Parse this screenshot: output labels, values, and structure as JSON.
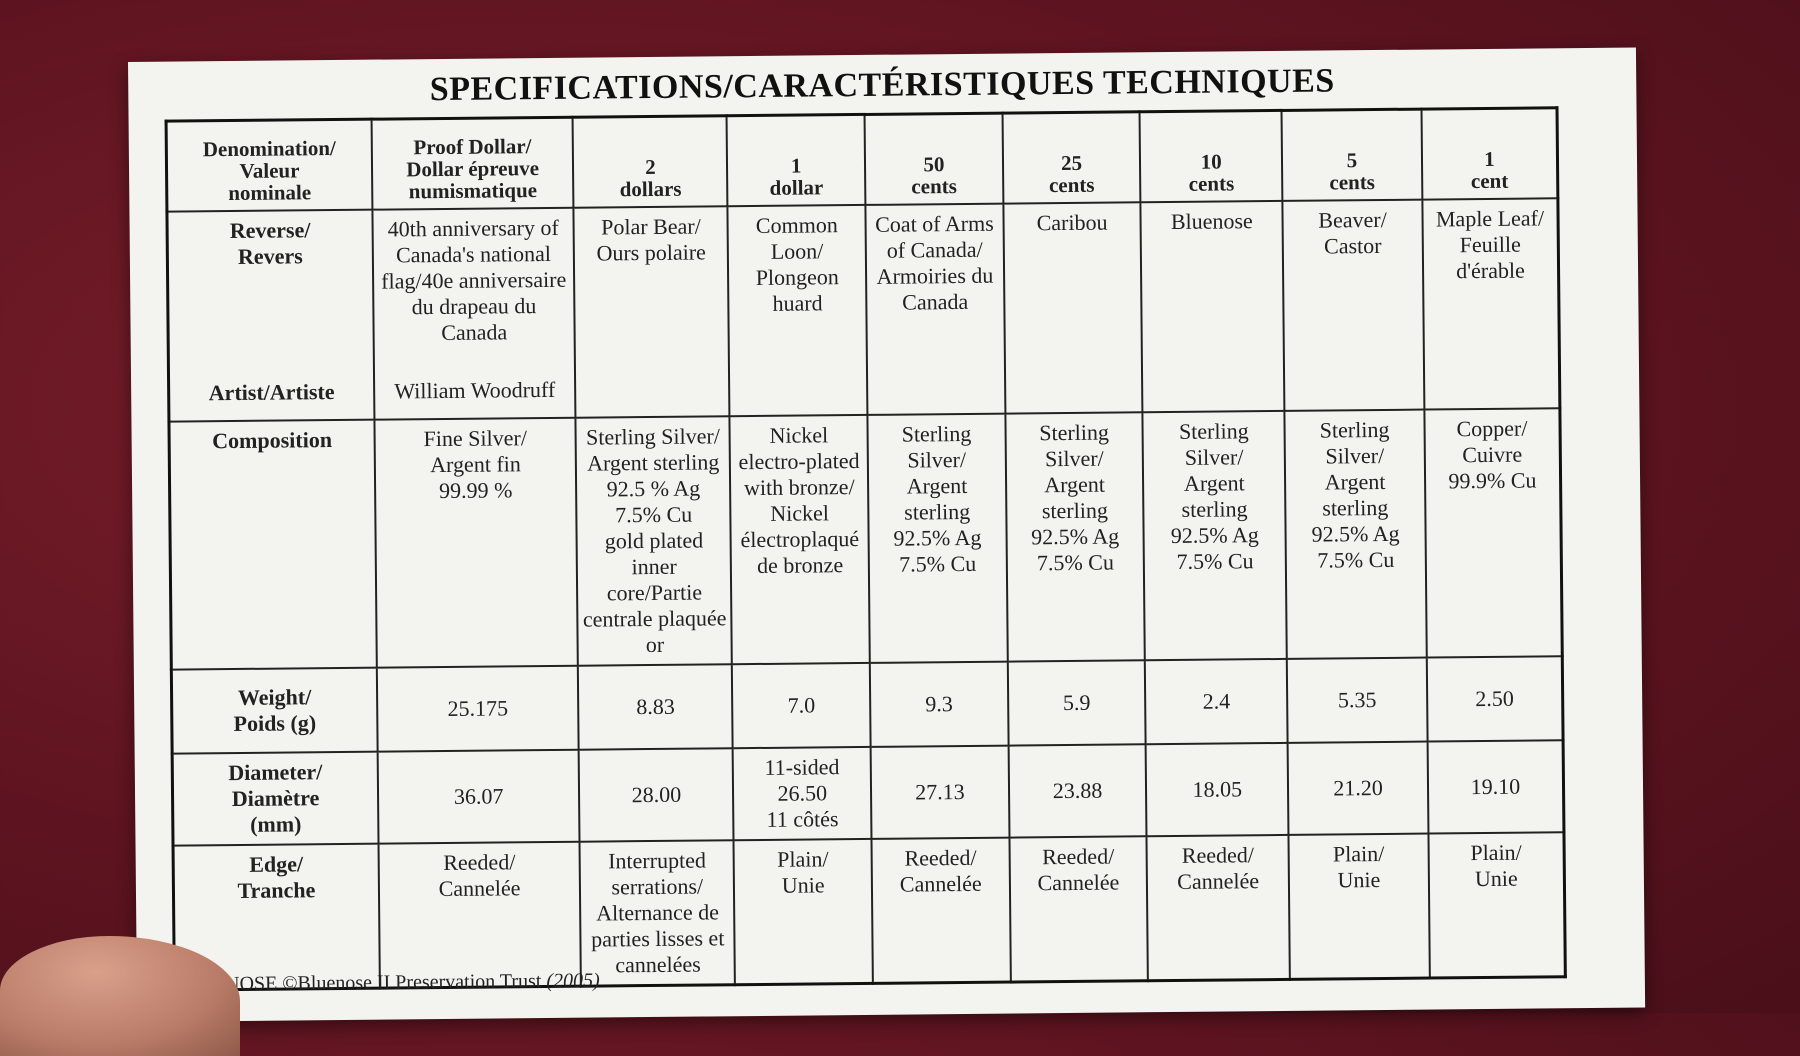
{
  "title": "SPECIFICATIONS/CARACTÉRISTIQUES TECHNIQUES",
  "header": {
    "label": "Denomination/\nValeur\nnominale",
    "columns": [
      "Proof Dollar/\nDollar épreuve\nnumismatique",
      "2\ndollars",
      "1\ndollar",
      "50\ncents",
      "25\ncents",
      "10\ncents",
      "5\ncents",
      "1\ncent"
    ]
  },
  "reverse": {
    "label": "Reverse/\nRevers",
    "artist_label": "Artist/Artiste",
    "artist_value": "William Woodruff",
    "values": [
      "40th anniversary of\nCanada's national\nflag/40e anniversaire\ndu drapeau du\nCanada",
      "Polar Bear/\nOurs polaire",
      "Common\nLoon/\nPlongeon\nhuard",
      "Coat of Arms\nof Canada/\nArmoiries du\nCanada",
      "Caribou",
      "Bluenose",
      "Beaver/\nCastor",
      "Maple Leaf/\nFeuille\nd'érable"
    ]
  },
  "composition": {
    "label": "Composition",
    "values": [
      "Fine Silver/\nArgent fin\n99.99 %",
      "Sterling Silver/\nArgent sterling\n92.5 % Ag\n7.5% Cu\ngold plated\ninner core/Partie\ncentrale plaquée\nor",
      "Nickel\nelectro-plated\nwith bronze/\nNickel\nélectroplaqué\nde bronze",
      "Sterling\nSilver/\nArgent\nsterling\n92.5% Ag\n7.5% Cu",
      "Sterling\nSilver/\nArgent\nsterling\n92.5% Ag\n7.5% Cu",
      "Sterling\nSilver/\nArgent\nsterling\n92.5% Ag\n7.5% Cu",
      "Sterling\nSilver/\nArgent\nsterling\n92.5% Ag\n7.5% Cu",
      "Copper/\nCuivre\n99.9% Cu"
    ]
  },
  "weight": {
    "label": "Weight/\nPoids (g)",
    "values": [
      "25.175",
      "8.83",
      "7.0",
      "9.3",
      "5.9",
      "2.4",
      "5.35",
      "2.50"
    ]
  },
  "diameter": {
    "label": "Diameter/\nDiamètre\n(mm)",
    "values": [
      "36.07",
      "28.00",
      "11-sided\n26.50\n11 côtés",
      "27.13",
      "23.88",
      "18.05",
      "21.20",
      "19.10"
    ]
  },
  "edge": {
    "label": "Edge/\nTranche",
    "values": [
      "Reeded/\nCannelée",
      "Interrupted\nserrations/\nAlternance de\nparties lisses et\ncannelées",
      "Plain/\nUnie",
      "Reeded/\nCannelée",
      "Reeded/\nCannelée",
      "Reeded/\nCannelée",
      "Plain/\nUnie",
      "Plain/\nUnie"
    ]
  },
  "footer": {
    "text": "BLUENOSE ©Bluenose II Preservation Trust",
    "year": "(2005)"
  }
}
